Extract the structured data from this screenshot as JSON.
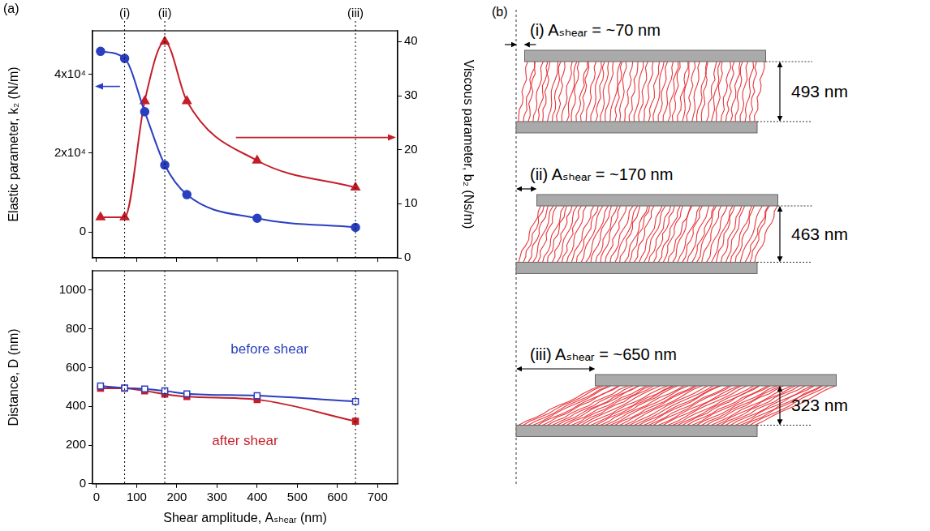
{
  "panel_labels": [
    "(a)",
    "(b)"
  ],
  "reference_lines": [
    {
      "x": 70,
      "label": "(i)"
    },
    {
      "x": 170,
      "label": "(ii)"
    },
    {
      "x": 645,
      "label": "(iii)"
    }
  ],
  "chart_data": [
    {
      "type": "line",
      "y_label": "Elastic parameter, k₂ (N/m)",
      "y2_label": "Viscous parameter, b₂ (Ns/m)",
      "x": [
        10,
        70,
        120,
        170,
        225,
        400,
        645
      ],
      "xlim": [
        -10,
        750
      ],
      "xticks": [
        0,
        100,
        200,
        300,
        400,
        500,
        600,
        700
      ],
      "ylim": [
        -6500,
        51000
      ],
      "yticks": [
        0,
        {
          "value": 20000,
          "label": "2x10⁴"
        },
        {
          "value": 40000,
          "label": "4x10⁴"
        }
      ],
      "y2lim": [
        0,
        42
      ],
      "y2ticks": [
        0,
        10,
        20,
        30,
        40
      ],
      "tick_labels": "y",
      "grid": false,
      "series": [
        {
          "color": "#2a3fc0",
          "marker": "circle",
          "values": [
            45800,
            44000,
            30500,
            17000,
            9500,
            3500,
            1200
          ]
        },
        {
          "color": "#c41e2a",
          "marker": "triangle",
          "axis": "y2",
          "values": [
            7.5,
            7.5,
            29,
            40,
            29,
            18,
            13
          ]
        }
      ]
    },
    {
      "type": "line",
      "x_label": "Shear amplitude, Aₛₕₑₐᵣ (nm)",
      "y_label": "Distance, D (nm)",
      "x": [
        10,
        70,
        120,
        170,
        225,
        400,
        645
      ],
      "xlim": [
        -10,
        750
      ],
      "xticks": [
        0,
        100,
        200,
        300,
        400,
        500,
        600,
        700
      ],
      "ylim": [
        0,
        1100
      ],
      "yticks": [
        0,
        200,
        400,
        600,
        800,
        1000
      ],
      "grid": false,
      "series": [
        {
          "name": "before shear",
          "color": "#2a3fc0",
          "marker": "square_open",
          "values": [
            505,
            495,
            490,
            480,
            465,
            455,
            425
          ]
        },
        {
          "name": "after shear",
          "color": "#c41e2a",
          "marker": "square",
          "values": [
            493,
            493,
            480,
            463,
            450,
            435,
            323
          ]
        }
      ]
    }
  ],
  "diagram": {
    "items": [
      {
        "title": "(i) Aₛₕₑₐᵣ = ~70 nm",
        "shear": 70,
        "gap": 493,
        "gap_label": "493 nm"
      },
      {
        "title": "(ii) Aₛₕₑₐᵣ = ~170 nm",
        "shear": 170,
        "gap": 463,
        "gap_label": "463 nm"
      },
      {
        "title": "(iii) Aₛₕₑₐᵣ = ~650 nm",
        "shear": 650,
        "gap": 323,
        "gap_label": "323 nm"
      }
    ]
  }
}
